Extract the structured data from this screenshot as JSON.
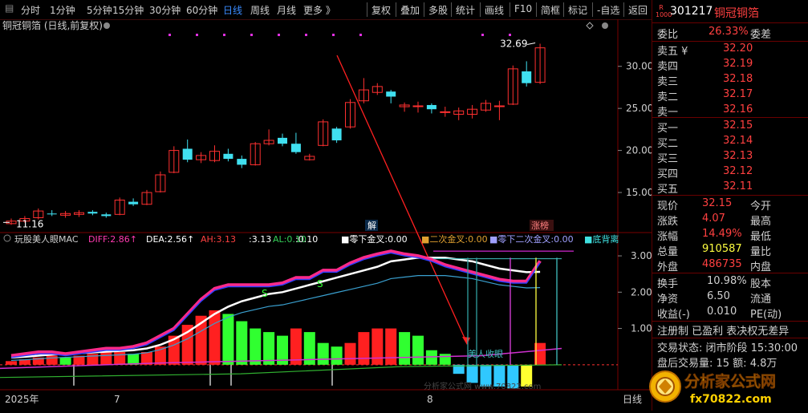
{
  "toolbar": {
    "periods": [
      "分时",
      "1分钟",
      "5分钟",
      "15分钟",
      "30分钟",
      "60分钟",
      "日线",
      "周线",
      "月线",
      "更多 》"
    ],
    "active_period": "日线",
    "actions": [
      "复权",
      "叠加",
      "多股",
      "统计",
      "画线",
      "F10",
      "简框",
      "标记",
      "-自选",
      "返回"
    ]
  },
  "chart": {
    "title": "铜冠铜箔 (日线,前复权)",
    "price_axis": [
      "30.00",
      "25.00",
      "20.00",
      "15.00"
    ],
    "high_label": "32.69",
    "low_label": "11.16",
    "tag_jie": "解",
    "tag_zhangbang": "涨榜",
    "indicator_axis": [
      "3.00",
      "2.00",
      "1.00"
    ],
    "x_labels": [
      "2025年",
      "7",
      "8"
    ],
    "bottom_right": "日线",
    "beauty_eye": "美人收眼",
    "s_markers": [
      "S",
      "S"
    ]
  },
  "indicator_header": {
    "name": "玩股美人眼MAC",
    "items": [
      {
        "label": "DIFF:",
        "value": "2.86↑",
        "color": "#ff3ab0"
      },
      {
        "label": "DEA:",
        "value": "2.56↑",
        "color": "#ffffff"
      },
      {
        "label": "AH:",
        "value": "3.13",
        "color": "#ff4040"
      },
      {
        "label": ":",
        "value": "3.13",
        "color": "#ffffff"
      },
      {
        "label": "AL:",
        "value": "0.10",
        "color": "#34d058"
      },
      {
        "label": ":",
        "value": "0.10",
        "color": "#ffffff"
      },
      {
        "label": "■零下金叉:",
        "value": "0.00",
        "color": "#ffffff"
      },
      {
        "label": "■二次金叉:",
        "value": "0.00",
        "color": "#e0a030"
      },
      {
        "label": "■零下二次金叉:",
        "value": "0.00",
        "color": "#a0a0ff"
      },
      {
        "label": "■底背离",
        "value": "",
        "color": "#40e0e0"
      }
    ]
  },
  "quote": {
    "code": "301217",
    "name": "铜冠铜箔",
    "weibi_label": "委比",
    "weibi": "26.33%",
    "weicha_label": "委差",
    "sell": [
      {
        "label": "卖五 ¥",
        "price": "32.20"
      },
      {
        "label": "卖四",
        "price": "32.19"
      },
      {
        "label": "卖三",
        "price": "32.18"
      },
      {
        "label": "卖二",
        "price": "32.17"
      },
      {
        "label": "卖一",
        "price": "32.16"
      }
    ],
    "buy": [
      {
        "label": "买一",
        "price": "32.15"
      },
      {
        "label": "买二",
        "price": "32.14"
      },
      {
        "label": "买三",
        "price": "32.13"
      },
      {
        "label": "买四",
        "price": "32.12"
      },
      {
        "label": "买五",
        "price": "32.11"
      }
    ],
    "stats": [
      {
        "l1": "现价",
        "v1": "32.15",
        "l2": "今开",
        "c1": "#ff4040"
      },
      {
        "l1": "涨跌",
        "v1": "4.07",
        "l2": "最高",
        "c1": "#ff4040"
      },
      {
        "l1": "涨幅",
        "v1": "14.49%",
        "l2": "最低",
        "c1": "#ff4040"
      },
      {
        "l1": "总量",
        "v1": "910587",
        "l2": "量比",
        "c1": "#ffff40"
      },
      {
        "l1": "外盘",
        "v1": "486735",
        "l2": "内盘",
        "c1": "#ff4040"
      }
    ],
    "stats2": [
      {
        "l1": "换手",
        "v1": "10.98%",
        "l2": "股本"
      },
      {
        "l1": "净资",
        "v1": "6.50",
        "l2": "流通"
      },
      {
        "l1": "收益(-)",
        "v1": "0.010",
        "l2": "PE(动)"
      }
    ],
    "flags": "注册制 已盈利 表决权无差异",
    "trade_state": "交易状态: 闭市阶段 15:30:00",
    "after_trade": "盘后交易量: 15  额: 4.8万"
  },
  "watermark": {
    "main": "分析家公式网",
    "sub": "fx70822.com",
    "chart_text": "分析家公式网 www.70822.com"
  },
  "chart_data": {
    "type": "candlestick",
    "title": "铜冠铜箔 (日线,前复权)",
    "ylim": [
      11,
      33.5
    ],
    "candles": [
      {
        "o": 11.3,
        "c": 11.6,
        "h": 11.9,
        "l": 11.16
      },
      {
        "o": 11.6,
        "c": 11.9,
        "h": 12.2,
        "l": 11.4
      },
      {
        "o": 12.0,
        "c": 12.8,
        "h": 13.1,
        "l": 11.8
      },
      {
        "o": 12.5,
        "c": 12.4,
        "h": 12.9,
        "l": 12.2
      },
      {
        "o": 12.3,
        "c": 12.5,
        "h": 12.8,
        "l": 12.0
      },
      {
        "o": 12.4,
        "c": 12.6,
        "h": 12.9,
        "l": 12.1
      },
      {
        "o": 12.7,
        "c": 12.5,
        "h": 12.9,
        "l": 12.3
      },
      {
        "o": 12.4,
        "c": 12.2,
        "h": 12.6,
        "l": 12.0
      },
      {
        "o": 12.4,
        "c": 14.1,
        "h": 14.4,
        "l": 12.3
      },
      {
        "o": 13.9,
        "c": 13.6,
        "h": 14.3,
        "l": 13.4
      },
      {
        "o": 13.6,
        "c": 15.0,
        "h": 15.3,
        "l": 13.5
      },
      {
        "o": 15.1,
        "c": 17.1,
        "h": 17.5,
        "l": 15.0
      },
      {
        "o": 17.4,
        "c": 20.0,
        "h": 20.5,
        "l": 17.3
      },
      {
        "o": 20.2,
        "c": 18.9,
        "h": 21.3,
        "l": 18.6
      },
      {
        "o": 18.9,
        "c": 19.4,
        "h": 19.8,
        "l": 18.5
      },
      {
        "o": 18.8,
        "c": 19.9,
        "h": 20.6,
        "l": 18.6
      },
      {
        "o": 19.6,
        "c": 19.0,
        "h": 20.2,
        "l": 18.7
      },
      {
        "o": 19.0,
        "c": 18.3,
        "h": 19.4,
        "l": 17.9
      },
      {
        "o": 18.3,
        "c": 20.8,
        "h": 21.0,
        "l": 18.2
      },
      {
        "o": 20.8,
        "c": 21.2,
        "h": 22.5,
        "l": 20.6
      },
      {
        "o": 21.5,
        "c": 20.8,
        "h": 22.0,
        "l": 20.5
      },
      {
        "o": 20.8,
        "c": 19.8,
        "h": 22.1,
        "l": 19.6
      },
      {
        "o": 18.9,
        "c": 19.3,
        "h": 19.6,
        "l": 18.8
      },
      {
        "o": 20.6,
        "c": 23.4,
        "h": 23.7,
        "l": 20.5
      },
      {
        "o": 22.6,
        "c": 21.2,
        "h": 22.8,
        "l": 20.9
      },
      {
        "o": 22.8,
        "c": 25.7,
        "h": 26.1,
        "l": 22.6
      },
      {
        "o": 25.9,
        "c": 27.2,
        "h": 28.6,
        "l": 25.6
      },
      {
        "o": 26.9,
        "c": 27.6,
        "h": 28.0,
        "l": 26.6
      },
      {
        "o": 27.0,
        "c": 26.4,
        "h": 27.2,
        "l": 25.6
      },
      {
        "o": 25.2,
        "c": 25.4,
        "h": 25.7,
        "l": 24.6
      },
      {
        "o": 25.3,
        "c": 25.3,
        "h": 25.8,
        "l": 24.5
      },
      {
        "o": 25.4,
        "c": 24.9,
        "h": 25.6,
        "l": 24.4
      },
      {
        "o": 24.6,
        "c": 24.6,
        "h": 25.2,
        "l": 24.0
      },
      {
        "o": 24.3,
        "c": 24.7,
        "h": 25.1,
        "l": 23.6
      },
      {
        "o": 24.3,
        "c": 24.9,
        "h": 25.4,
        "l": 23.8
      },
      {
        "o": 24.8,
        "c": 25.6,
        "h": 26.0,
        "l": 24.6
      },
      {
        "o": 25.3,
        "c": 25.3,
        "h": 25.9,
        "l": 23.6
      },
      {
        "o": 25.5,
        "c": 29.7,
        "h": 30.1,
        "l": 25.4
      },
      {
        "o": 29.4,
        "c": 28.0,
        "h": 30.6,
        "l": 27.6
      },
      {
        "o": 28.1,
        "c": 32.2,
        "h": 32.69,
        "l": 27.9
      }
    ],
    "indicator": {
      "type": "bar+line",
      "ylim": [
        -0.6,
        3.2
      ],
      "histogram": [
        0.1,
        0.15,
        0.2,
        0.25,
        0.2,
        0.25,
        0.3,
        0.35,
        0.35,
        0.3,
        0.35,
        0.5,
        0.8,
        1.1,
        1.35,
        1.5,
        1.4,
        1.2,
        1.0,
        0.9,
        0.8,
        1.0,
        0.9,
        0.6,
        0.5,
        0.6,
        0.9,
        1.0,
        1.0,
        0.9,
        0.8,
        0.4,
        0.3,
        -0.25,
        -0.5,
        -0.6,
        -0.6,
        -0.65,
        -0.6,
        0.6
      ],
      "diff": [
        0.25,
        0.3,
        0.35,
        0.35,
        0.3,
        0.35,
        0.4,
        0.45,
        0.45,
        0.5,
        0.6,
        0.8,
        1.0,
        1.4,
        1.8,
        2.1,
        2.2,
        2.2,
        2.2,
        2.2,
        2.25,
        2.4,
        2.4,
        2.6,
        2.6,
        2.8,
        2.95,
        3.05,
        3.13,
        3.05,
        3.0,
        2.9,
        2.75,
        2.65,
        2.55,
        2.45,
        2.35,
        2.3,
        2.3,
        2.86
      ],
      "dea": [
        0.2,
        0.22,
        0.25,
        0.28,
        0.3,
        0.32,
        0.34,
        0.36,
        0.38,
        0.4,
        0.45,
        0.55,
        0.7,
        0.9,
        1.15,
        1.4,
        1.6,
        1.75,
        1.85,
        1.95,
        2.0,
        2.1,
        2.2,
        2.3,
        2.4,
        2.5,
        2.6,
        2.7,
        2.85,
        2.9,
        2.95,
        2.95,
        2.95,
        2.9,
        2.85,
        2.75,
        2.65,
        2.6,
        2.55,
        2.56
      ]
    }
  }
}
